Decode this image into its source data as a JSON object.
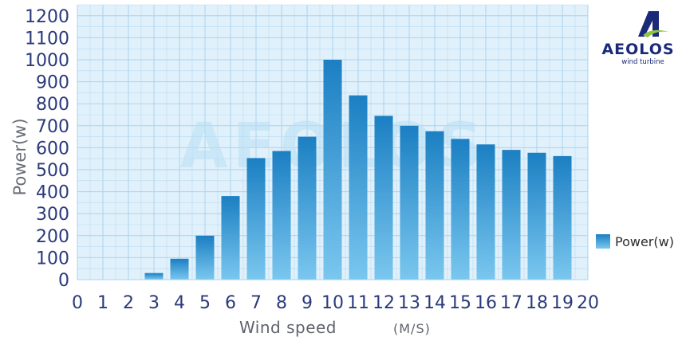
{
  "logo": {
    "name": "AEOLOS",
    "tagline": "wind turbine",
    "icon": "aeolos-logo-icon"
  },
  "watermark": "AEOLOS",
  "legend": {
    "label": "Power(w)",
    "position": "right"
  },
  "colors": {
    "plot_bg": "#e1f1fb",
    "grid": "#a9d3ef",
    "bar_top": "#1b7fc2",
    "bar_bottom": "#7ac7ef",
    "axis_text": "#2b3a7a"
  },
  "chart_data": {
    "type": "bar",
    "xlabel": "Wind speed",
    "xunit": "(M/S)",
    "ylabel": "Power(w)",
    "ylim": [
      0,
      1250
    ],
    "yticks": [
      0,
      100,
      200,
      300,
      400,
      500,
      600,
      700,
      800,
      900,
      1000,
      1100,
      1200
    ],
    "xlim": [
      0,
      20
    ],
    "xticks": [
      0,
      1,
      2,
      3,
      4,
      5,
      6,
      7,
      8,
      9,
      10,
      11,
      12,
      13,
      14,
      15,
      16,
      17,
      18,
      19,
      20
    ],
    "grid": true,
    "series": [
      {
        "name": "Power(w)",
        "x": [
          3,
          4,
          5,
          6,
          7,
          8,
          9,
          10,
          11,
          12,
          13,
          14,
          15,
          16,
          17,
          18,
          19
        ],
        "values": [
          30,
          95,
          200,
          380,
          553,
          585,
          650,
          1000,
          838,
          745,
          700,
          675,
          640,
          615,
          590,
          577,
          562
        ]
      }
    ]
  }
}
